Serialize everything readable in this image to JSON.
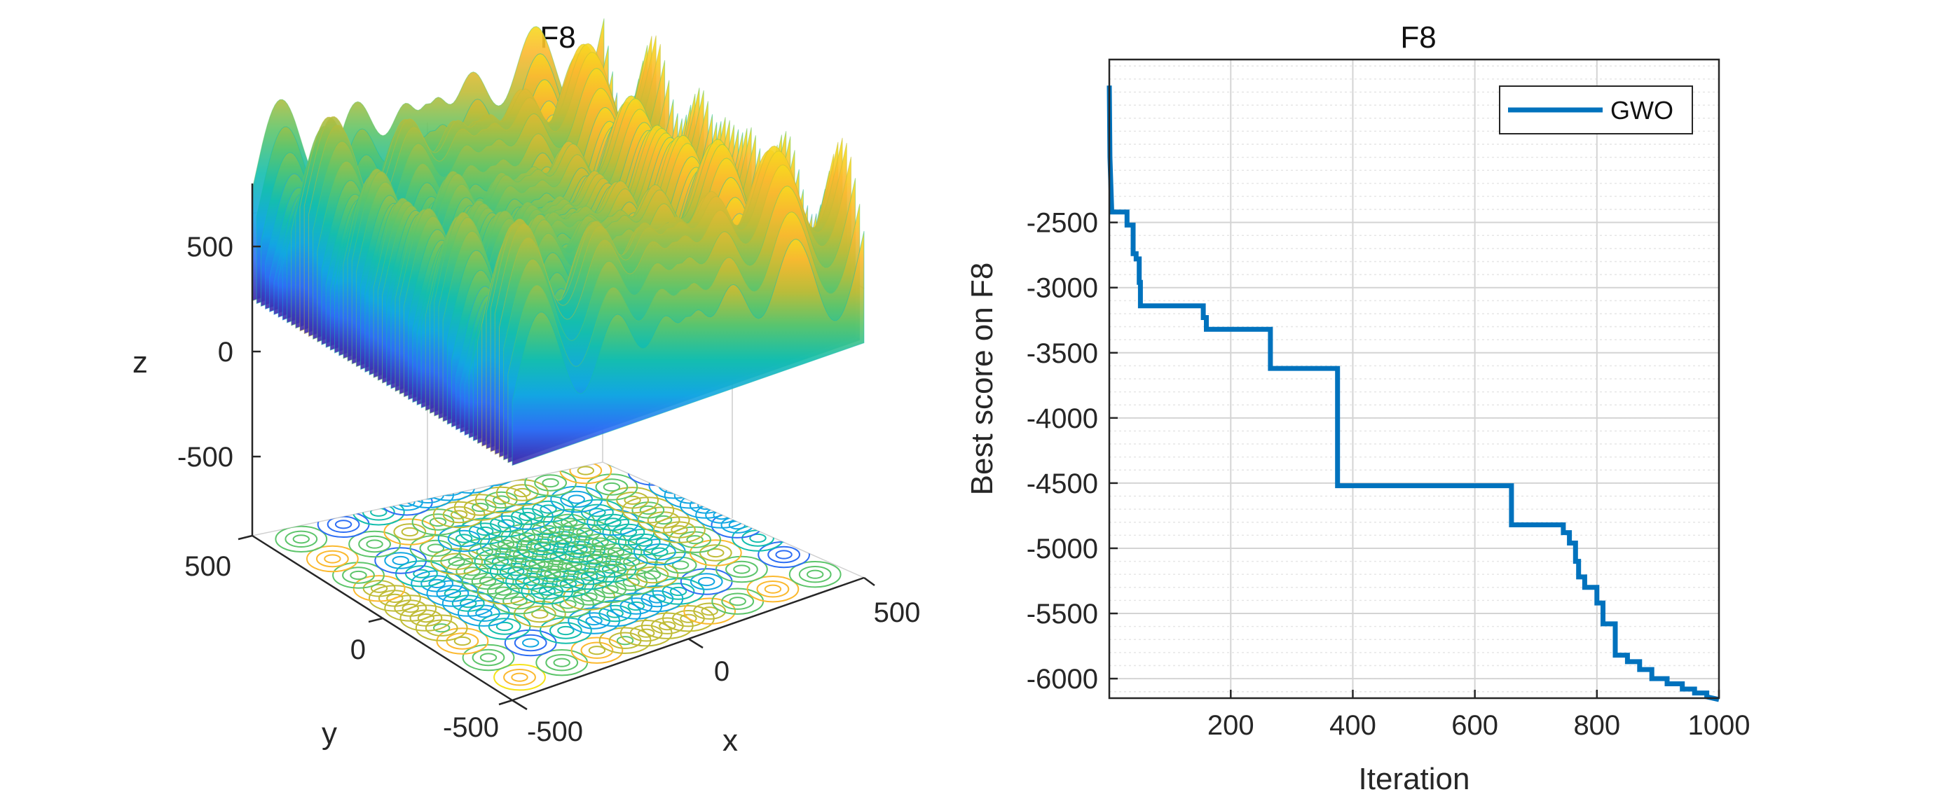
{
  "chart_data": [
    {
      "type": "surface3d",
      "title": "F8",
      "xlabel": "x",
      "ylabel": "y",
      "zlabel": "z",
      "xlim": [
        -500,
        500
      ],
      "ylim": [
        -500,
        500
      ],
      "zlim": [
        -850,
        850
      ],
      "x_ticks": [
        "-500",
        "0",
        "500"
      ],
      "y_ticks": [
        "-500",
        "0",
        "500"
      ],
      "z_ticks": [
        "-500",
        "0",
        "500"
      ],
      "function": "z = -x*sin(sqrt(|x|)) - y*sin(sqrt(|y|))",
      "colormap": [
        "#3e26a8",
        "#2e6ef4",
        "#12a7e2",
        "#14bead",
        "#5dc56b",
        "#c0bc37",
        "#fbb92f",
        "#f5e319"
      ],
      "contour_projection": "on floor"
    },
    {
      "type": "line",
      "title": "F8",
      "xlabel": "Iteration",
      "ylabel": "Best score on F8",
      "xlim": [
        1,
        1000
      ],
      "ylim": [
        -6150,
        -1250
      ],
      "x_ticks": [
        "200",
        "400",
        "600",
        "800",
        "1000"
      ],
      "y_ticks": [
        "-2500",
        "-3000",
        "-3500",
        "-4000",
        "-4500",
        "-5000",
        "-5500",
        "-6000"
      ],
      "grid": true,
      "legend": "top-right",
      "series": [
        {
          "name": "GWO",
          "color": "#0072bd",
          "x": [
            1,
            2,
            5,
            30,
            30,
            40,
            40,
            45,
            45,
            50,
            50,
            52,
            52,
            155,
            155,
            160,
            160,
            265,
            265,
            375,
            375,
            660,
            660,
            745,
            745,
            755,
            755,
            765,
            765,
            770,
            770,
            780,
            780,
            800,
            800,
            810,
            810,
            830,
            830,
            850,
            850,
            870,
            870,
            890,
            890,
            915,
            915,
            940,
            940,
            960,
            960,
            980,
            980,
            1000
          ],
          "y": [
            -1450,
            -2000,
            -2420,
            -2420,
            -2520,
            -2520,
            -2740,
            -2740,
            -2780,
            -2780,
            -2960,
            -2960,
            -3140,
            -3140,
            -3230,
            -3230,
            -3320,
            -3320,
            -3620,
            -3620,
            -4520,
            -4520,
            -4820,
            -4820,
            -4880,
            -4880,
            -4960,
            -4960,
            -5100,
            -5100,
            -5220,
            -5220,
            -5300,
            -5300,
            -5420,
            -5420,
            -5580,
            -5580,
            -5820,
            -5820,
            -5870,
            -5870,
            -5930,
            -5930,
            -6000,
            -6000,
            -6040,
            -6040,
            -6080,
            -6080,
            -6110,
            -6110,
            -6140,
            -6160
          ]
        }
      ]
    }
  ]
}
